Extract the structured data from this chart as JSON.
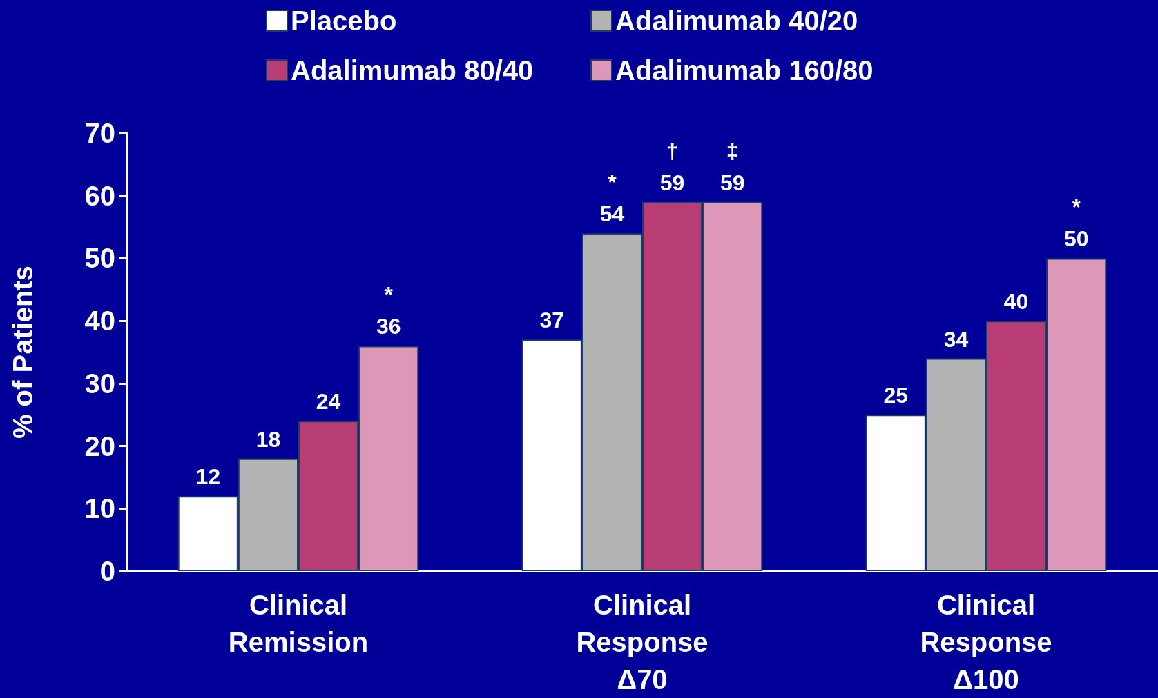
{
  "chart_data": {
    "type": "bar",
    "ylabel": "% of Patients",
    "categories": [
      "Clinical\nRemission",
      "Clinical\nResponse\nΔ70",
      "Clinical\nResponse\nΔ100"
    ],
    "series": [
      {
        "name": "Placebo",
        "color": "#ffffff",
        "values": [
          12,
          37,
          25
        ]
      },
      {
        "name": "Adalimumab 40/20",
        "color": "#b3b3b3",
        "values": [
          18,
          54,
          34
        ]
      },
      {
        "name": "Adalimumab 80/40",
        "color": "#b83d75",
        "values": [
          24,
          59,
          40
        ]
      },
      {
        "name": "Adalimumab 160/80",
        "color": "#dd97b9",
        "values": [
          36,
          59,
          50
        ]
      }
    ],
    "ylim": [
      0,
      70
    ],
    "yticks": [
      0,
      10,
      20,
      30,
      40,
      50,
      60,
      70
    ],
    "grid": false,
    "legend": "top",
    "data_labels": true,
    "annotations": [
      "*",
      "*",
      "†",
      "‡",
      "*"
    ]
  }
}
